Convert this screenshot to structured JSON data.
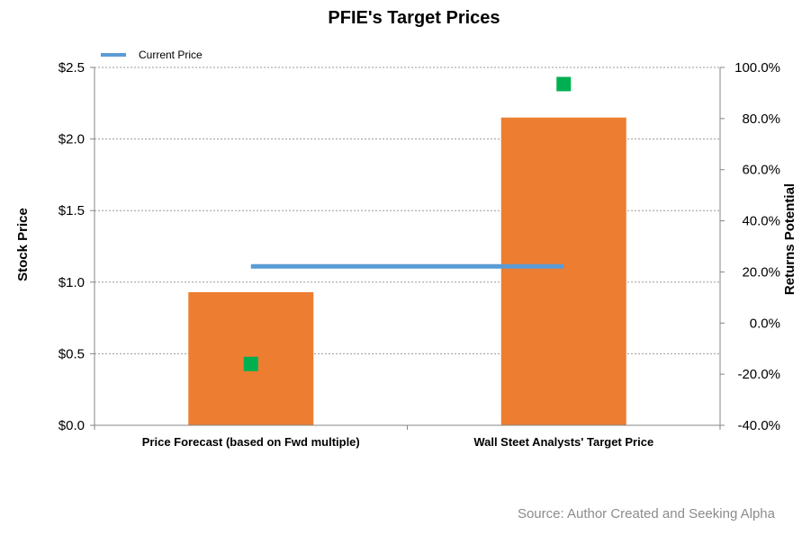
{
  "chart_data": {
    "type": "bar",
    "title": "PFIE's Target Prices",
    "categories": [
      "Price Forecast (based on Fwd multiple)",
      "Wall Steet Analysts' Target Price"
    ],
    "series": [
      {
        "name": "",
        "kind": "bar",
        "axis": "left",
        "values": [
          0.93,
          2.15
        ],
        "color": "#ed7d31"
      },
      {
        "name": "Current Price",
        "kind": "line",
        "axis": "left",
        "values": [
          1.11,
          1.11
        ],
        "color": "#5b9bd5"
      },
      {
        "name": "",
        "kind": "marker",
        "axis": "right",
        "values": [
          -16.0,
          93.5
        ],
        "color": "#00b050"
      }
    ],
    "ylabel": "Stock Price",
    "ylim": [
      0,
      2.5
    ],
    "yticks": [
      "$0.0",
      "$0.5",
      "$1.0",
      "$1.5",
      "$2.0",
      "$2.5"
    ],
    "y2label": "Returns Potential",
    "y2lim": [
      -40,
      100
    ],
    "y2ticks": [
      "-40.0%",
      "-20.0%",
      "0.0%",
      "20.0%",
      "40.0%",
      "60.0%",
      "80.0%",
      "100.0%"
    ],
    "grid": true,
    "legend_position": "top-left",
    "source": "Source: Author Created and Seeking Alpha"
  }
}
